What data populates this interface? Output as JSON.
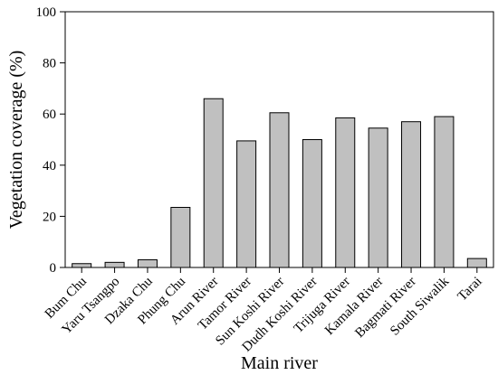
{
  "chart_data": {
    "type": "bar",
    "title": "",
    "xlabel": "Main river",
    "ylabel": "Vegetation coverage (%)",
    "ylim": [
      0,
      100
    ],
    "yticks": [
      0,
      20,
      40,
      60,
      80,
      100
    ],
    "grid": false,
    "legend": "none",
    "bar_color": "#c0c0c0",
    "categories": [
      "Bum Chu",
      "Yaru Tsangpo",
      "Dzaka Chu",
      "Phung Chu",
      "Arun River",
      "Tamor River",
      "Sun Koshi River",
      "Dudh Koshi River",
      "Trijuga River",
      "Kamala River",
      "Bagmati River",
      "South Siwalik",
      "Tarai"
    ],
    "values": [
      1.5,
      2,
      3,
      23.5,
      66,
      49.5,
      60.5,
      50,
      58.5,
      54.5,
      57,
      59,
      3.5
    ]
  }
}
